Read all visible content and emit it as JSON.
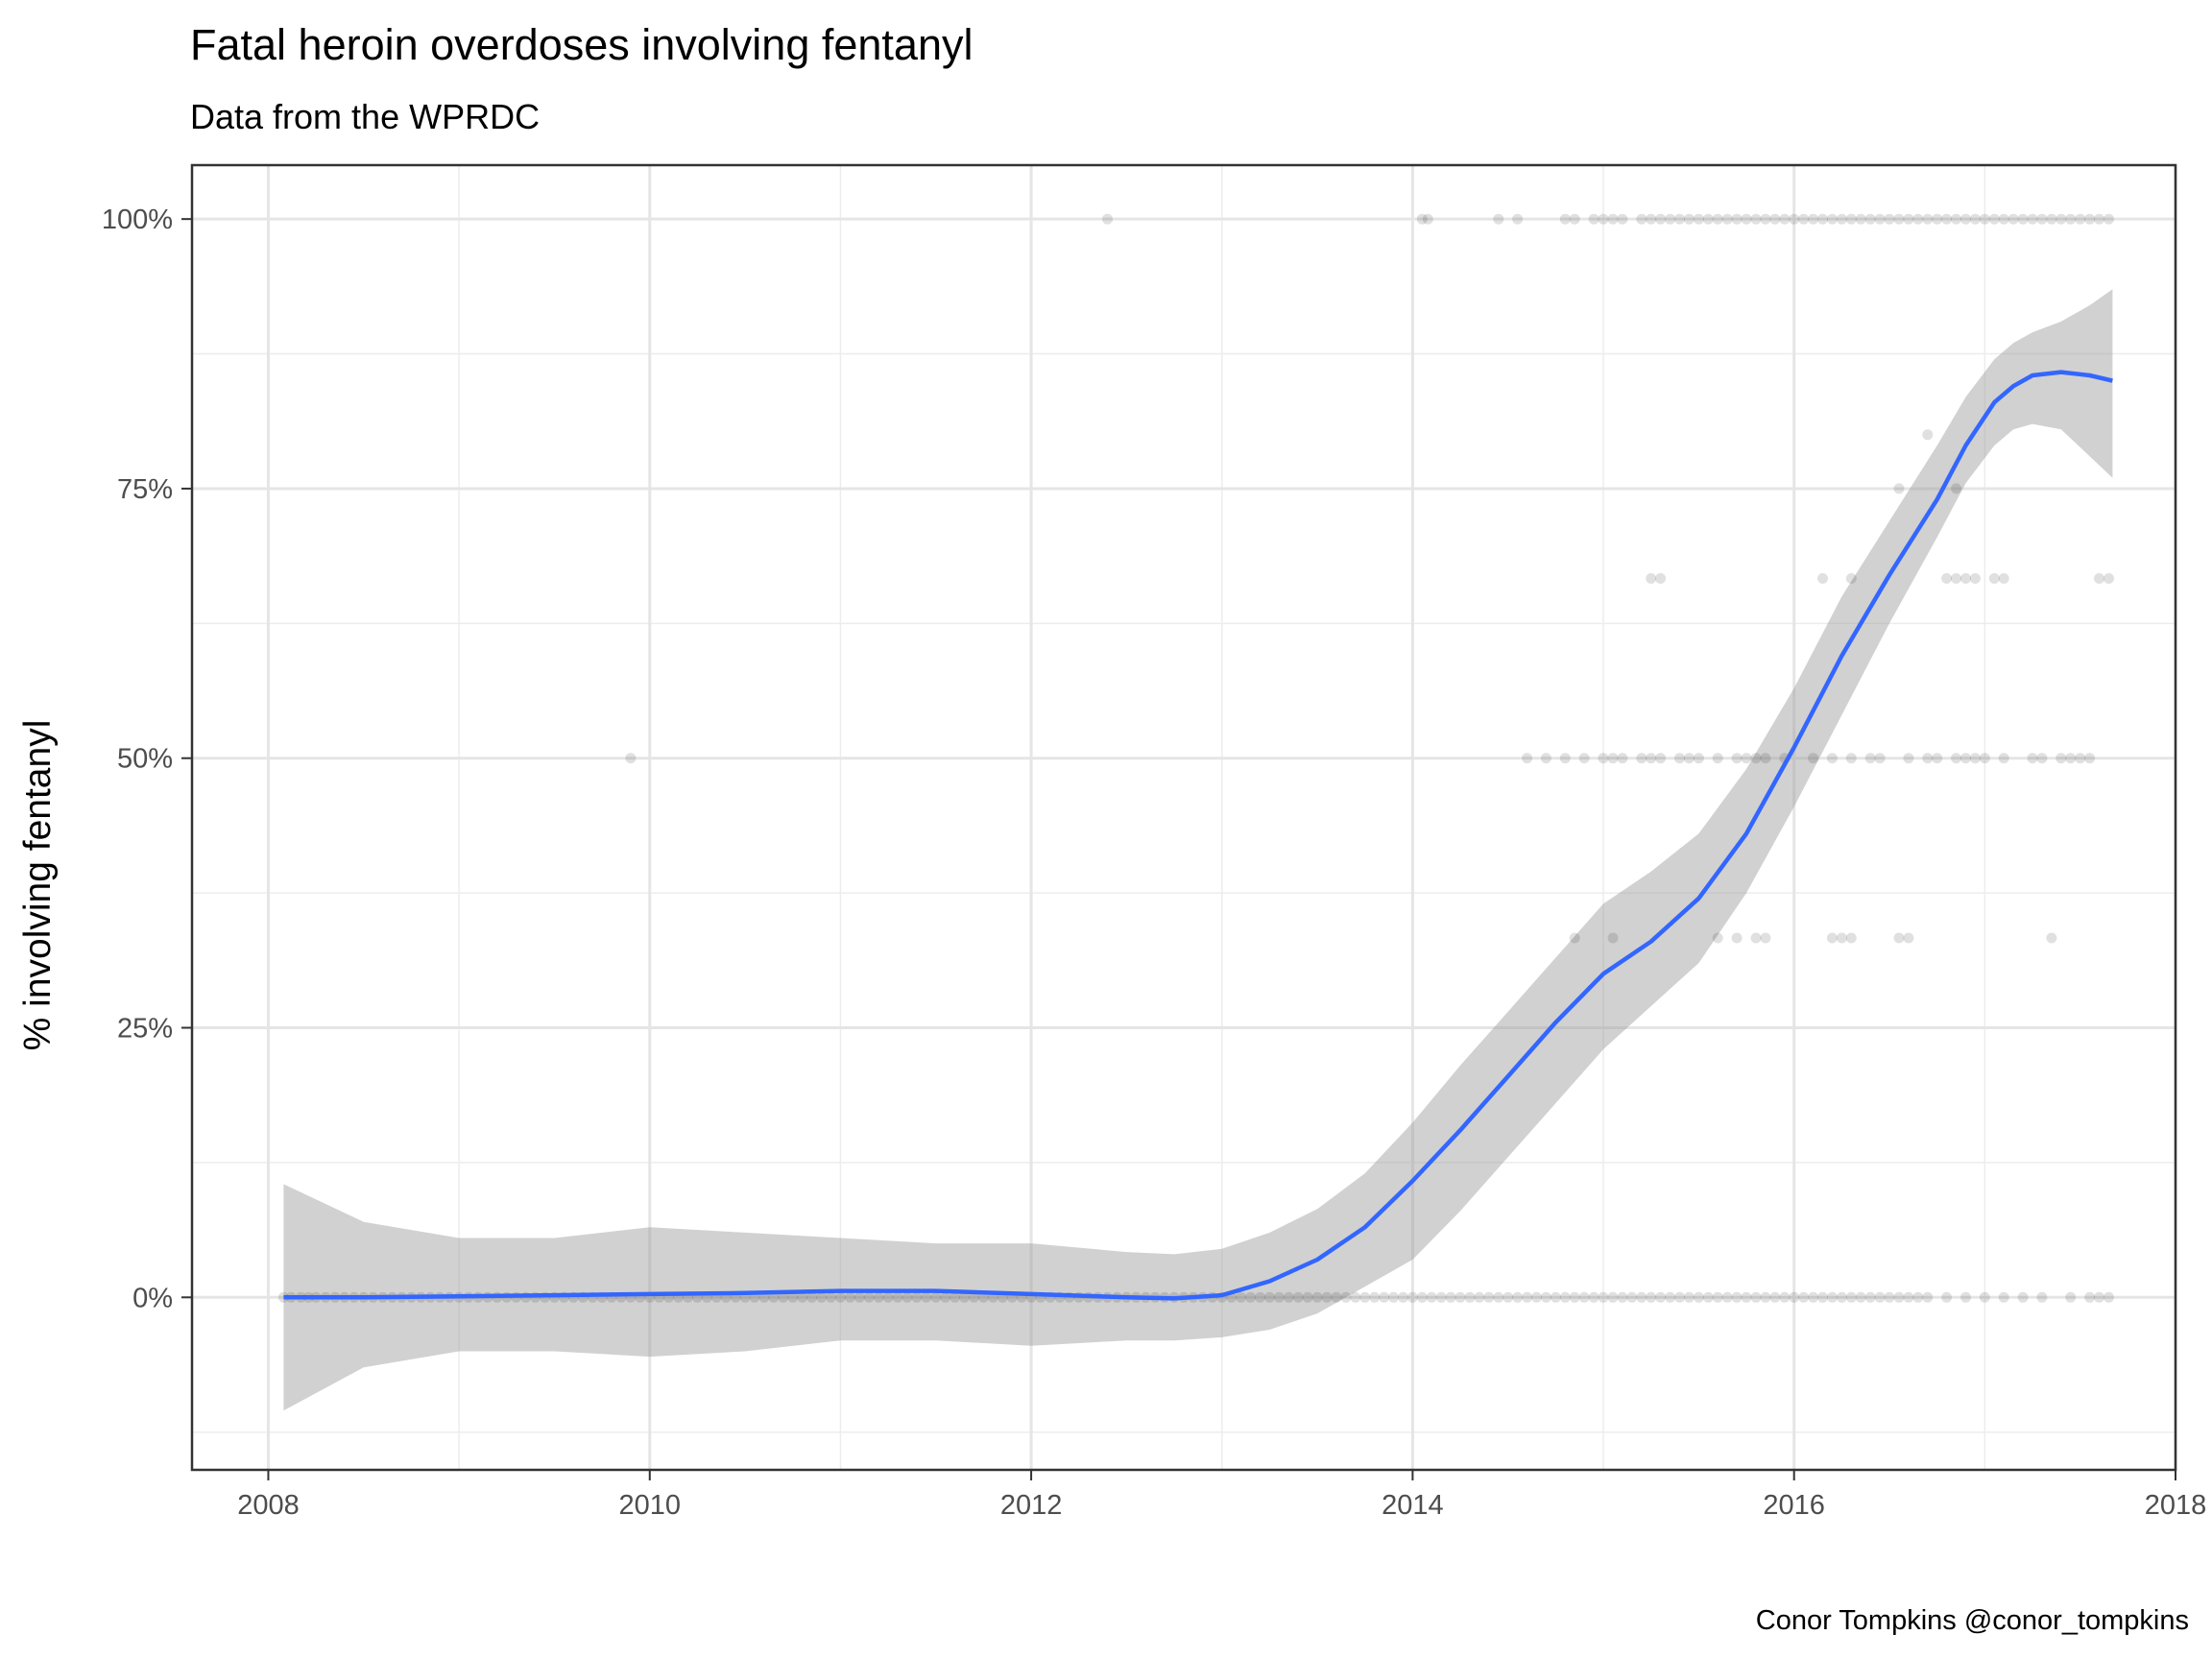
{
  "chart_data": {
    "type": "scatter",
    "title": "Fatal heroin overdoses involving fentanyl",
    "subtitle": "Data from the WPRDC",
    "caption": "Conor Tompkins @conor_tompkins",
    "xlabel": "",
    "ylabel": "% involving fentanyl",
    "xlim": [
      2007.6,
      2018.0
    ],
    "ylim": [
      -0.16,
      1.05
    ],
    "x_ticks": [
      2008,
      2010,
      2012,
      2014,
      2016,
      2018
    ],
    "x_tick_labels": [
      "2008",
      "2010",
      "2012",
      "2014",
      "2016",
      "2018"
    ],
    "y_ticks": [
      0,
      0.25,
      0.5,
      0.75,
      1.0
    ],
    "y_tick_labels": [
      "0%",
      "25%",
      "50%",
      "75%",
      "100%"
    ],
    "grid": true,
    "colors": {
      "points": "#000000",
      "smooth_line": "#3366FF",
      "ribbon": "#999999",
      "panel_border": "#333333",
      "grid": "#e5e5e5"
    },
    "points": {
      "opacity": 0.12,
      "groups": [
        {
          "y": 0.0,
          "x": [
            2008.08,
            2008.12,
            2008.17,
            2008.21,
            2008.25,
            2008.3,
            2008.35,
            2008.4,
            2008.45,
            2008.5,
            2008.55,
            2008.6,
            2008.65,
            2008.7,
            2008.75,
            2008.8,
            2008.85,
            2008.9,
            2008.95,
            2009.0,
            2009.05,
            2009.1,
            2009.15,
            2009.2,
            2009.25,
            2009.3,
            2009.35,
            2009.4,
            2009.45,
            2009.5,
            2009.55,
            2009.6,
            2009.65,
            2009.7,
            2009.75,
            2009.8,
            2009.85,
            2009.9,
            2009.95,
            2010.0,
            2010.05,
            2010.1,
            2010.15,
            2010.2,
            2010.25,
            2010.3,
            2010.35,
            2010.4,
            2010.45,
            2010.5,
            2010.55,
            2010.6,
            2010.65,
            2010.7,
            2010.75,
            2010.8,
            2010.85,
            2010.9,
            2010.95,
            2011.0,
            2011.05,
            2011.1,
            2011.15,
            2011.2,
            2011.25,
            2011.3,
            2011.35,
            2011.4,
            2011.45,
            2011.5,
            2011.55,
            2011.6,
            2011.65,
            2011.7,
            2011.75,
            2011.8,
            2011.85,
            2011.9,
            2011.95,
            2012.0,
            2012.05,
            2012.1,
            2012.15,
            2012.2,
            2012.25,
            2012.3,
            2012.35,
            2012.4,
            2012.45,
            2012.5,
            2012.55,
            2012.6,
            2012.65,
            2012.7,
            2012.75,
            2012.8,
            2012.85,
            2012.9,
            2012.95,
            2013.0,
            2013.05,
            2013.1,
            2013.15,
            2013.2,
            2013.25,
            2013.3,
            2013.35,
            2013.4,
            2013.45,
            2013.5,
            2013.55,
            2013.6,
            2013.65,
            2013.7,
            2013.75,
            2013.8,
            2013.85,
            2013.9,
            2013.95,
            2014.0,
            2014.05,
            2014.1,
            2014.15,
            2014.2,
            2014.25,
            2014.3,
            2014.35,
            2014.4,
            2014.45,
            2014.5,
            2014.55,
            2014.6,
            2014.65,
            2014.7,
            2014.75,
            2014.8,
            2014.85,
            2014.9,
            2014.95,
            2015.0,
            2015.05,
            2015.1,
            2015.15,
            2015.2,
            2015.25,
            2015.3,
            2015.35,
            2015.4,
            2015.45,
            2015.5,
            2015.55,
            2015.6,
            2015.65,
            2015.7,
            2015.75,
            2015.8,
            2015.85,
            2015.9,
            2015.95,
            2016.0,
            2016.05,
            2016.1,
            2016.15,
            2016.2,
            2016.25,
            2016.3,
            2016.35,
            2016.4,
            2016.45,
            2016.5,
            2016.55,
            2016.6,
            2016.65,
            2016.7,
            2016.8,
            2016.9,
            2017.0,
            2017.1,
            2017.2,
            2017.3,
            2017.45,
            2017.55,
            2017.6,
            2017.65
          ]
        },
        {
          "y": 0.3333,
          "x": [
            2014.85,
            2015.05,
            2015.6,
            2015.7,
            2015.8,
            2015.85,
            2016.2,
            2016.25,
            2016.3,
            2016.55,
            2016.6,
            2017.35
          ]
        },
        {
          "y": 0.5,
          "x": [
            2009.9,
            2014.6,
            2014.7,
            2014.8,
            2014.9,
            2015.0,
            2015.05,
            2015.1,
            2015.2,
            2015.25,
            2015.3,
            2015.4,
            2015.45,
            2015.5,
            2015.6,
            2015.7,
            2015.75,
            2015.8,
            2015.85,
            2015.95,
            2016.1,
            2016.2,
            2016.3,
            2016.4,
            2016.45,
            2016.6,
            2016.7,
            2016.75,
            2016.85,
            2016.9,
            2016.95,
            2017.0,
            2017.1,
            2017.25,
            2017.3,
            2017.4,
            2017.45,
            2017.5,
            2017.55
          ]
        },
        {
          "y": 0.6667,
          "x": [
            2015.25,
            2015.3,
            2016.15,
            2016.3,
            2016.8,
            2016.85,
            2016.9,
            2016.95,
            2017.05,
            2017.1,
            2017.6,
            2017.65
          ]
        },
        {
          "y": 0.75,
          "x": [
            2016.55,
            2016.85
          ]
        },
        {
          "y": 0.8,
          "x": [
            2016.7
          ]
        },
        {
          "y": 1.0,
          "x": [
            2012.4,
            2014.05,
            2014.08,
            2014.45,
            2014.55,
            2014.8,
            2014.85,
            2014.95,
            2015.0,
            2015.05,
            2015.1,
            2015.2,
            2015.25,
            2015.3,
            2015.35,
            2015.4,
            2015.45,
            2015.5,
            2015.55,
            2015.6,
            2015.65,
            2015.7,
            2015.75,
            2015.8,
            2015.85,
            2015.9,
            2015.95,
            2016.0,
            2016.05,
            2016.1,
            2016.15,
            2016.2,
            2016.25,
            2016.3,
            2016.35,
            2016.4,
            2016.45,
            2016.5,
            2016.55,
            2016.6,
            2016.65,
            2016.7,
            2016.75,
            2016.8,
            2016.85,
            2016.9,
            2016.95,
            2017.0,
            2017.05,
            2017.1,
            2017.15,
            2017.2,
            2017.25,
            2017.3,
            2017.35,
            2017.4,
            2017.45,
            2017.5,
            2017.55,
            2017.6,
            2017.65
          ]
        }
      ]
    },
    "smooth": {
      "name": "",
      "x": [
        2008.08,
        2008.5,
        2009.0,
        2009.5,
        2010.0,
        2010.5,
        2011.0,
        2011.5,
        2012.0,
        2012.5,
        2012.75,
        2013.0,
        2013.25,
        2013.5,
        2013.75,
        2014.0,
        2014.25,
        2014.5,
        2014.75,
        2015.0,
        2015.25,
        2015.5,
        2015.75,
        2016.0,
        2016.25,
        2016.5,
        2016.75,
        2016.9,
        2017.05,
        2017.15,
        2017.25,
        2017.4,
        2017.55,
        2017.67
      ],
      "y": [
        0.0,
        0.0,
        0.001,
        0.002,
        0.003,
        0.004,
        0.006,
        0.006,
        0.003,
        0.0,
        -0.001,
        0.002,
        0.015,
        0.035,
        0.065,
        0.108,
        0.155,
        0.205,
        0.255,
        0.3,
        0.33,
        0.37,
        0.43,
        0.51,
        0.595,
        0.67,
        0.74,
        0.79,
        0.83,
        0.845,
        0.855,
        0.858,
        0.855,
        0.85
      ],
      "lower": [
        -0.105,
        -0.065,
        -0.05,
        -0.05,
        -0.055,
        -0.05,
        -0.04,
        -0.04,
        -0.045,
        -0.04,
        -0.04,
        -0.037,
        -0.03,
        -0.015,
        0.01,
        0.035,
        0.08,
        0.13,
        0.18,
        0.23,
        0.27,
        0.31,
        0.375,
        0.455,
        0.54,
        0.625,
        0.705,
        0.755,
        0.79,
        0.805,
        0.81,
        0.805,
        0.78,
        0.76
      ],
      "upper": [
        0.105,
        0.07,
        0.055,
        0.055,
        0.065,
        0.06,
        0.055,
        0.05,
        0.05,
        0.042,
        0.04,
        0.045,
        0.06,
        0.082,
        0.115,
        0.162,
        0.215,
        0.265,
        0.315,
        0.365,
        0.395,
        0.43,
        0.49,
        0.565,
        0.65,
        0.72,
        0.79,
        0.835,
        0.87,
        0.885,
        0.895,
        0.905,
        0.92,
        0.935
      ]
    }
  }
}
